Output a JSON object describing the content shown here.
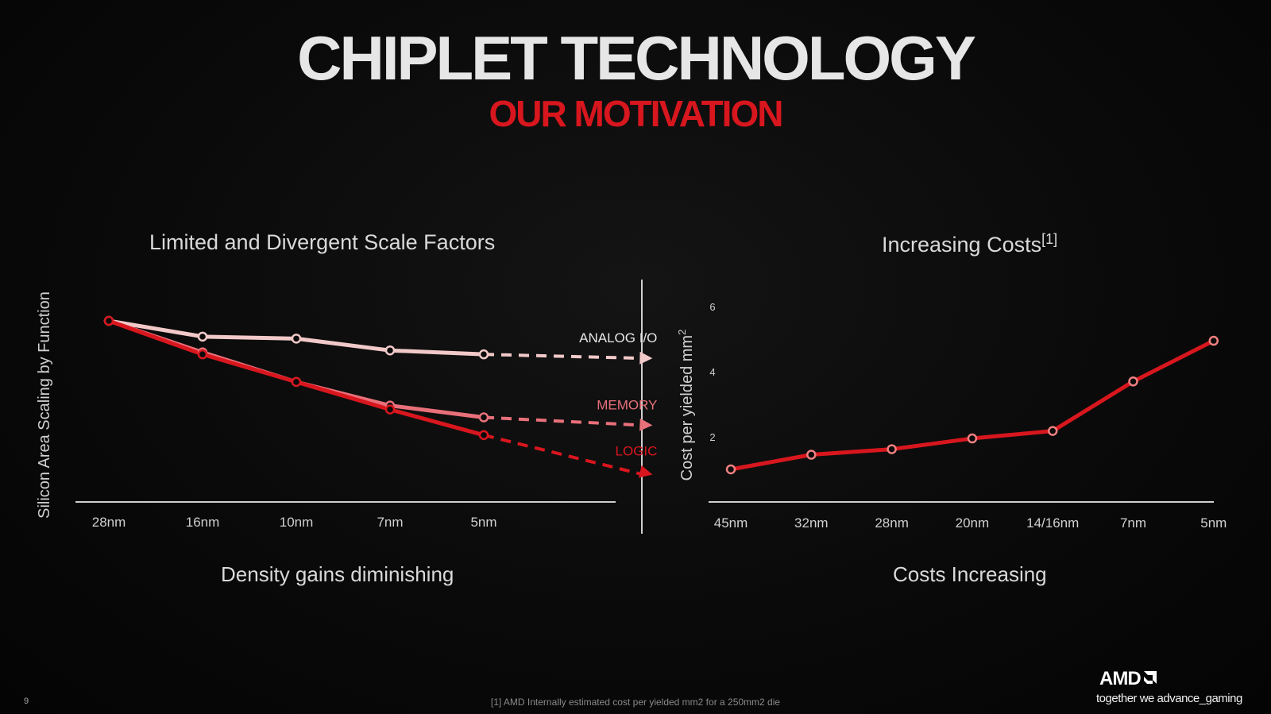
{
  "title": "CHIPLET TECHNOLOGY",
  "subtitle": "OUR MOTIVATION",
  "left_caption": "Density gains diminishing",
  "right_caption": "Costs Increasing",
  "footnote": "[1] AMD Internally estimated cost per yielded mm2 for a 250mm2 die",
  "page_number": "9",
  "brand": {
    "logo_text": "AMD",
    "tagline": "together we advance_gaming"
  },
  "colors": {
    "accent": "#d8161e",
    "analog": "#f2c9c9",
    "memory": "#e8707a",
    "logic": "#d8161e",
    "axis": "#cfcfcf"
  },
  "chart_data": [
    {
      "type": "line",
      "title": "Limited and Divergent Scale Factors",
      "xlabel": "",
      "ylabel": "Silicon Area Scaling by Function",
      "categories": [
        "28nm",
        "16nm",
        "10nm",
        "7nm",
        "5nm"
      ],
      "ylim": [
        0,
        1.0
      ],
      "projection_steps": 1.8,
      "series": [
        {
          "name": "ANALOG I/O",
          "color": "#f2c9c9",
          "values": [
            1.0,
            0.92,
            0.91,
            0.85,
            0.83
          ],
          "projected": 0.81
        },
        {
          "name": "MEMORY",
          "color": "#e8707a",
          "values": [
            1.0,
            0.84,
            0.69,
            0.57,
            0.51
          ],
          "projected": 0.47
        },
        {
          "name": "LOGIC",
          "color": "#d8161e",
          "values": [
            1.0,
            0.83,
            0.69,
            0.55,
            0.42
          ],
          "projected": 0.22
        }
      ],
      "grid": false
    },
    {
      "type": "line",
      "title": "Increasing Costs",
      "title_superscript": "[1]",
      "xlabel": "",
      "ylabel": "Cost per yielded mm",
      "ylabel_superscript": "2",
      "categories": [
        "45nm",
        "32nm",
        "28nm",
        "20nm",
        "14/16nm",
        "7nm",
        "5nm"
      ],
      "yticks": [
        2,
        4,
        6
      ],
      "ylim": [
        0,
        6
      ],
      "series": [
        {
          "name": "Cost",
          "color": "#d8161e",
          "values": [
            1.0,
            1.45,
            1.62,
            1.95,
            2.18,
            3.7,
            4.95
          ]
        }
      ],
      "grid": false
    }
  ]
}
